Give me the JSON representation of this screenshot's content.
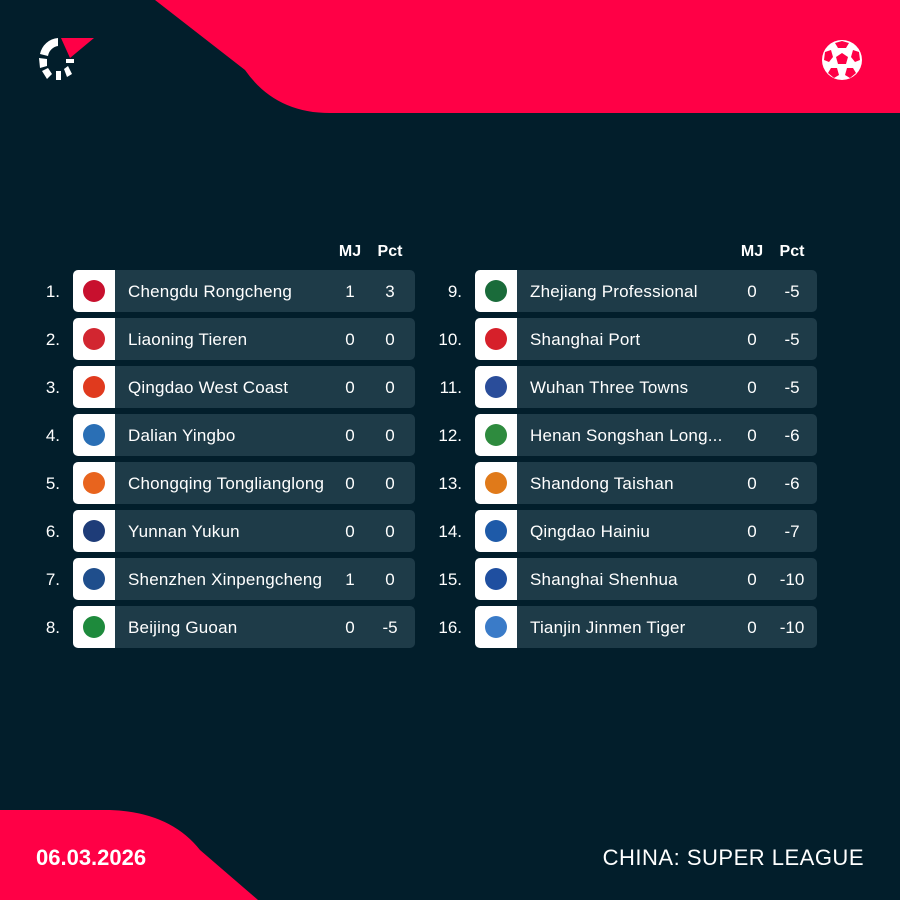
{
  "colors": {
    "background": "#021e2b",
    "accent": "#ff0046",
    "row": "#1e3b48"
  },
  "icons": {
    "logo": "flashscore-logo",
    "sport": "soccer-ball-icon"
  },
  "headers": {
    "mj": "MJ",
    "pct": "Pct"
  },
  "left": [
    {
      "rank": "1.",
      "team": "Chengdu Rongcheng",
      "mj": "1",
      "pct": "3",
      "crest": "#c8102e"
    },
    {
      "rank": "2.",
      "team": "Liaoning Tieren",
      "mj": "0",
      "pct": "0",
      "crest": "#d22630"
    },
    {
      "rank": "3.",
      "team": "Qingdao West Coast",
      "mj": "0",
      "pct": "0",
      "crest": "#e03a1e"
    },
    {
      "rank": "4.",
      "team": "Dalian Yingbo",
      "mj": "0",
      "pct": "0",
      "crest": "#2a6fb5"
    },
    {
      "rank": "5.",
      "team": "Chongqing Tonglianglong",
      "mj": "0",
      "pct": "0",
      "crest": "#e8641e"
    },
    {
      "rank": "6.",
      "team": "Yunnan Yukun",
      "mj": "0",
      "pct": "0",
      "crest": "#1e3c78"
    },
    {
      "rank": "7.",
      "team": "Shenzhen Xinpengcheng",
      "mj": "1",
      "pct": "0",
      "crest": "#1f4e8c"
    },
    {
      "rank": "8.",
      "team": "Beijing Guoan",
      "mj": "0",
      "pct": "-5",
      "crest": "#1e8a3c"
    }
  ],
  "right": [
    {
      "rank": "9.",
      "team": "Zhejiang Professional",
      "mj": "0",
      "pct": "-5",
      "crest": "#1a6b3a"
    },
    {
      "rank": "10.",
      "team": "Shanghai Port",
      "mj": "0",
      "pct": "-5",
      "crest": "#d6202a"
    },
    {
      "rank": "11.",
      "team": "Wuhan Three Towns",
      "mj": "0",
      "pct": "-5",
      "crest": "#2a4d9a"
    },
    {
      "rank": "12.",
      "team": "Henan Songshan Long...",
      "mj": "0",
      "pct": "-6",
      "crest": "#2e8b3e"
    },
    {
      "rank": "13.",
      "team": "Shandong Taishan",
      "mj": "0",
      "pct": "-6",
      "crest": "#e07a1a"
    },
    {
      "rank": "14.",
      "team": "Qingdao Hainiu",
      "mj": "0",
      "pct": "-7",
      "crest": "#1e5aa8"
    },
    {
      "rank": "15.",
      "team": "Shanghai Shenhua",
      "mj": "0",
      "pct": "-10",
      "crest": "#1f4fa0"
    },
    {
      "rank": "16.",
      "team": "Tianjin Jinmen Tiger",
      "mj": "0",
      "pct": "-10",
      "crest": "#3a7bc8"
    }
  ],
  "footer": {
    "date": "06.03.2026",
    "league": "CHINA: SUPER LEAGUE"
  }
}
